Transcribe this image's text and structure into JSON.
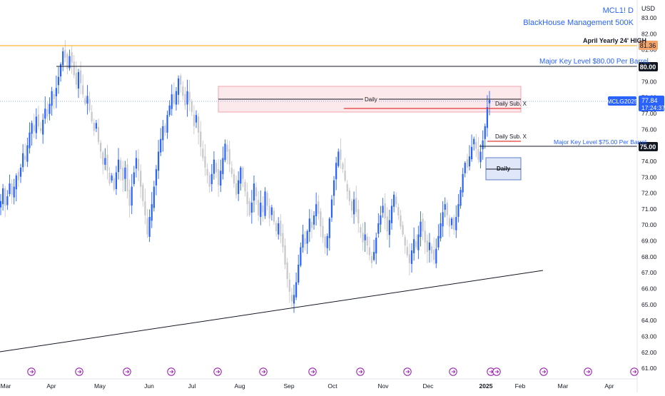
{
  "header": {
    "symbol_line": "MCL1! D",
    "author_line": "BlackHouse Management 500K",
    "currency": "USD"
  },
  "colors": {
    "up": "#2962ff",
    "down": "#c8c8cc",
    "accent": "#2962ff",
    "orange": "#f7a600",
    "red": "#e53935",
    "axis_text": "#131722"
  },
  "annotations": {
    "yearly_high": "April Yearly 24' HIGH",
    "key80": "Major Key Level $80.00 Per Barrel.",
    "key75": "Major Key Level $75.00 Per Barrel.",
    "daily_top": "Daily",
    "daily_sub_1": "Daily Sub. X",
    "daily_sub_2": "Daily Sub. X",
    "daily_bottom": "Daily"
  },
  "price_tags": {
    "high": "81.36",
    "key80": "80.00",
    "key75": "75.00",
    "last_price": "77.84",
    "countdown": "17:24:37",
    "symbol_tag": "MCLG2025"
  },
  "chart_data": {
    "type": "candlestick",
    "title": "MCL1! D",
    "currency": "USD",
    "y_ticks": [
      "61.00",
      "62.00",
      "63.00",
      "64.00",
      "65.00",
      "66.00",
      "67.00",
      "68.00",
      "69.00",
      "70.00",
      "71.00",
      "72.00",
      "73.00",
      "74.00",
      "76.00",
      "77.00",
      "78.00",
      "79.00",
      "81.00",
      "82.00",
      "83.00"
    ],
    "ylim": [
      60.6,
      83.9
    ],
    "x_ticks": [
      "Mar",
      "Apr",
      "May",
      "Jun",
      "Jul",
      "Aug",
      "Sep",
      "Oct",
      "Nov",
      "Dec",
      "2025",
      "Feb",
      "Mar",
      "Apr"
    ],
    "closes_approx": [
      71.5,
      72.3,
      71.2,
      71.8,
      72.6,
      71.9,
      72.4,
      73.1,
      72.8,
      73.6,
      74.5,
      74.1,
      75.0,
      75.8,
      76.4,
      75.9,
      76.8,
      76.2,
      75.9,
      76.6,
      77.3,
      76.8,
      77.6,
      78.4,
      77.9,
      78.6,
      79.3,
      80.1,
      80.9,
      80.5,
      79.8,
      80.6,
      80.2,
      79.4,
      78.8,
      79.6,
      78.9,
      78.2,
      77.6,
      78.1,
      77.2,
      76.5,
      75.9,
      76.4,
      75.2,
      74.6,
      73.8,
      74.2,
      73.4,
      72.6,
      73.1,
      72.2,
      73.3,
      74.1,
      73.5,
      72.8,
      73.6,
      72.1,
      71.2,
      72.4,
      73.3,
      74.2,
      73.4,
      72.4,
      71.5,
      70.6,
      69.4,
      70.5,
      71.3,
      72.4,
      73.5,
      74.6,
      75.4,
      76.2,
      75.8,
      76.9,
      77.5,
      78.2,
      77.6,
      78.4,
      79.2,
      78.8,
      78.1,
      77.5,
      78.4,
      77.8,
      77.1,
      76.2,
      76.9,
      75.8,
      74.9,
      74.2,
      73.6,
      73.1,
      72.4,
      73.2,
      74.1,
      73.3,
      72.5,
      73.4,
      74.2,
      75.1,
      74.6,
      73.8,
      73.2,
      72.6,
      71.9,
      72.8,
      73.6,
      72.9,
      72.1,
      71.3,
      70.6,
      71.4,
      72.6,
      71.8,
      70.6,
      71.4,
      70.8,
      72.1,
      71.2,
      70.4,
      71.1,
      70.2,
      69.6,
      70.1,
      69.3,
      68.6,
      67.5,
      66.6,
      65.8,
      65.2,
      65.6,
      66.4,
      67.5,
      68.6,
      69.4,
      68.8,
      69.6,
      70.4,
      69.8,
      70.6,
      71.3,
      70.7,
      69.9,
      69.2,
      68.6,
      69.3,
      70.4,
      71.6,
      72.8,
      73.9,
      74.6,
      74.1,
      73.5,
      72.8,
      72.1,
      71.5,
      70.9,
      71.6,
      70.8,
      70.1,
      69.5,
      68.9,
      69.4,
      68.7,
      68.1,
      67.6,
      68.3,
      69.2,
      70.1,
      70.6,
      71.2,
      70.4,
      69.6,
      70.3,
      71.2,
      71.9,
      71.3,
      70.6,
      69.9,
      69.4,
      68.7,
      68.1,
      67.6,
      68.4,
      69.1,
      68.6,
      69.4,
      70.2,
      69.6,
      68.9,
      68.3,
      68.9,
      68.2,
      67.8,
      68.5,
      69.3,
      70.1,
      70.8,
      71.3,
      70.6,
      69.9,
      70.4,
      69.7,
      70.5,
      71.3,
      72.2,
      73.2,
      73.9,
      73.6,
      74.3,
      74.9,
      75.4,
      74.8,
      74.1,
      74.6,
      75.3,
      76.2,
      77.4,
      77.84
    ]
  }
}
